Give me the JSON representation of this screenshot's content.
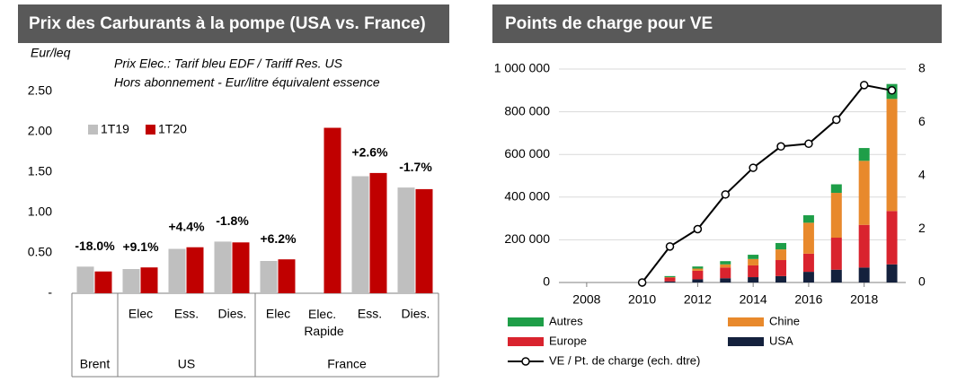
{
  "chart_data": [
    {
      "type": "bar",
      "title": "Prix des Carburants à la pompe (USA vs. France)",
      "ylabel": "Eur/leq",
      "annotations": [
        "Prix Elec.: Tarif bleu EDF / Tariff Res. US",
        "Hors abonnement - Eur/litre équivalent essence"
      ],
      "categories": [
        null,
        "Elec",
        "Ess.",
        "Dies.",
        "Elec",
        "Elec. Rapide",
        "Ess.",
        "Dies."
      ],
      "groups": [
        {
          "name": "Brent",
          "count": 1
        },
        {
          "name": "US",
          "count": 3
        },
        {
          "name": "France",
          "count": 4
        }
      ],
      "series": [
        {
          "name": "1T19",
          "color": "#bfbfbf",
          "values": [
            0.33,
            0.3,
            0.55,
            0.64,
            0.4,
            null,
            1.45,
            1.31
          ]
        },
        {
          "name": "1T20",
          "color": "#c00000",
          "values": [
            0.27,
            0.32,
            0.57,
            0.63,
            0.42,
            2.05,
            1.49,
            1.29
          ]
        }
      ],
      "change_labels": [
        "-18.0%",
        "+9.1%",
        "+4.4%",
        "-1.8%",
        "+6.2%",
        null,
        "+2.6%",
        "-1.7%"
      ],
      "ylim": [
        0,
        2.8
      ],
      "yticks": [
        {
          "value": 0,
          "label": "-"
        },
        {
          "value": 0.5,
          "label": "0.50"
        },
        {
          "value": 1,
          "label": "1.00"
        },
        {
          "value": 1.5,
          "label": "1.50"
        },
        {
          "value": 2,
          "label": "2.00"
        },
        {
          "value": 2.5,
          "label": "2.50"
        }
      ],
      "grid": false,
      "legend": "upper left"
    },
    {
      "type": "bar",
      "stacked": true,
      "title": "Points de charge pour VE",
      "x": [
        2010,
        2011,
        2012,
        2013,
        2014,
        2015,
        2016,
        2017,
        2018,
        2019
      ],
      "series": [
        {
          "name": "Autres",
          "color": "#1e9e48",
          "values": [
            null,
            5000,
            10000,
            15000,
            20000,
            30000,
            35000,
            40000,
            60000,
            70000
          ]
        },
        {
          "name": "Chine",
          "color": "#e8892c",
          "values": [
            null,
            2000,
            10000,
            15000,
            30000,
            50000,
            145000,
            210000,
            300000,
            525000
          ]
        },
        {
          "name": "Europe",
          "color": "#d9232e",
          "values": [
            null,
            18000,
            40000,
            50000,
            55000,
            75000,
            85000,
            150000,
            200000,
            250000
          ]
        },
        {
          "name": "USA",
          "color": "#14213d",
          "values": [
            null,
            5000,
            15000,
            20000,
            25000,
            30000,
            50000,
            60000,
            70000,
            85000
          ]
        },
        {
          "name": "VE / Pt. de charge (ech. dtre)",
          "type": "line",
          "axis": "y2",
          "color": "#000000",
          "values": [
            0,
            1.35,
            2.0,
            3.3,
            4.3,
            5.1,
            5.2,
            6.1,
            7.4,
            7.2
          ]
        }
      ],
      "xlim": [
        2007,
        2019.5
      ],
      "xticks": [
        2008,
        2010,
        2012,
        2014,
        2016,
        2018
      ],
      "ylim": [
        0,
        1000000
      ],
      "yticks": [
        0,
        {
          "value": 200000,
          "label": "200 000"
        },
        {
          "value": 400000,
          "label": "400 000"
        },
        {
          "value": 600000,
          "label": "600 000"
        },
        {
          "value": 800000,
          "label": "800 000"
        },
        {
          "value": 1000000,
          "label": "1 000 000"
        }
      ],
      "y2lim": [
        0,
        8
      ],
      "y2ticks": [
        0,
        2,
        4,
        6,
        8
      ],
      "grid": true,
      "legend": "bottom"
    }
  ]
}
